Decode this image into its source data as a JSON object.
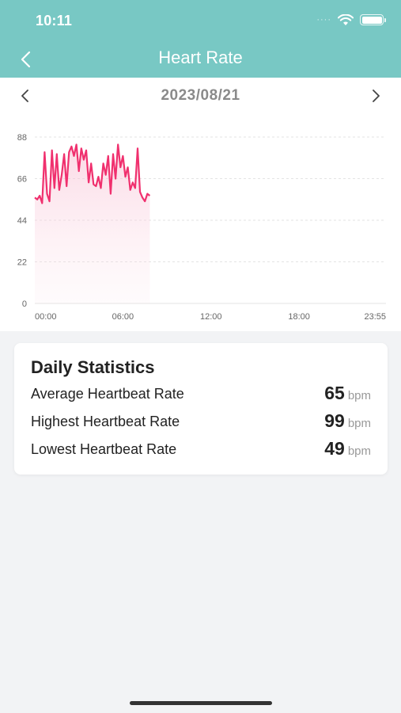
{
  "status_bar": {
    "time": "10:11",
    "dots": "····"
  },
  "nav": {
    "title": "Heart Rate"
  },
  "date_nav": {
    "date": "2023/08/21"
  },
  "chart_data": {
    "type": "area",
    "title": "",
    "xlabel": "",
    "ylabel": "",
    "y_ticks": [
      "0",
      "22",
      "44",
      "66",
      "88"
    ],
    "x_ticks": [
      "00:00",
      "06:00",
      "12:00",
      "18:00",
      "23:55"
    ],
    "ylim": [
      0,
      88
    ],
    "xlim_minutes": [
      0,
      1435
    ],
    "grid": true,
    "line_color": "#f0306e",
    "fill_color": "#fce4ec",
    "series": [
      {
        "x": [
          0,
          10,
          20,
          30,
          40,
          50,
          60,
          70,
          80,
          90,
          100,
          110,
          120,
          130,
          140,
          150,
          160,
          170,
          180,
          190,
          200,
          210,
          220,
          230,
          240,
          250,
          260,
          270,
          280,
          290,
          300,
          310,
          320,
          330,
          340,
          350,
          360,
          370,
          380,
          390,
          400,
          410,
          420,
          430,
          440,
          450,
          460,
          470
        ],
        "y": [
          56,
          55,
          57,
          53,
          80,
          58,
          54,
          81,
          61,
          79,
          60,
          68,
          79,
          62,
          80,
          83,
          78,
          84,
          70,
          82,
          76,
          81,
          64,
          74,
          63,
          62,
          67,
          61,
          74,
          68,
          78,
          58,
          79,
          66,
          84,
          72,
          78,
          67,
          72,
          60,
          64,
          61,
          82,
          59,
          56,
          54,
          58,
          57
        ]
      }
    ]
  },
  "stats": {
    "title": "Daily Statistics",
    "rows": [
      {
        "label": "Average Heartbeat Rate",
        "value": "65",
        "unit": "bpm"
      },
      {
        "label": "Highest Heartbeat Rate",
        "value": "99",
        "unit": "bpm"
      },
      {
        "label": "Lowest Heartbeat Rate",
        "value": "49",
        "unit": "bpm"
      }
    ]
  }
}
